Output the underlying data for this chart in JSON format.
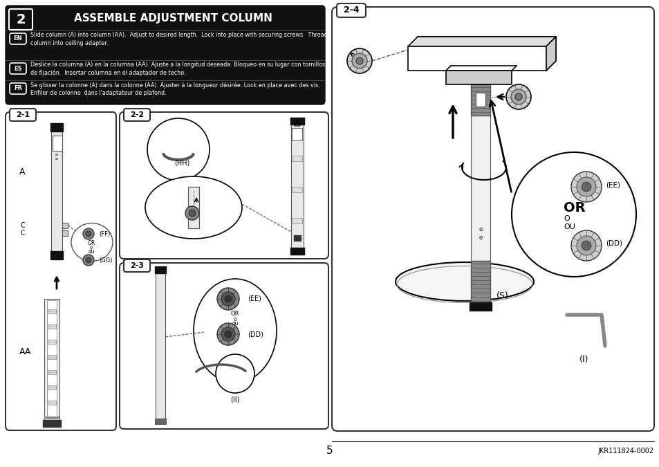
{
  "page_bg": "#ffffff",
  "header_bg": "#1a1a1a",
  "header_text": "ASSEMBLE ADJUSTMENT COLUMN",
  "header_num": "2",
  "header_text_color": "#ffffff",
  "en_text": "Slide column (A) into column (AA).  Adjust to desired length.  Lock into place with securing screws.  Thread\ncolumn into ceiling adapter.",
  "es_text": "Deslice la columna (A) en la columna (AA). Ajuste a la longitud deseada. Bloqueo en su lugar con tornillos\nde fijación.  Insertar columna en el adaptador de techo.",
  "fr_text": "Se glisser la colonne (A) dans la colonne (AA). Ajuster à la longueur désirée. Lock en place avec des vis.\nEnfiler de colonne  dans l'adaptateur de plafond.",
  "page_num": "5",
  "doc_num": "JKR111824-0002"
}
